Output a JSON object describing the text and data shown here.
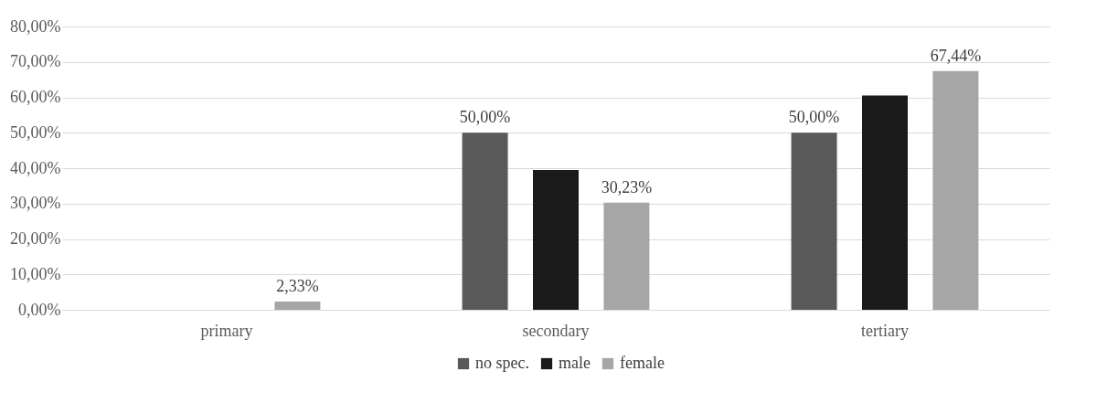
{
  "chart_data": {
    "type": "bar",
    "categories": [
      "primary",
      "secondary",
      "tertiary"
    ],
    "series": [
      {
        "name": "no spec.",
        "color": "#595959",
        "values": [
          0,
          50,
          50
        ],
        "value_labels": [
          null,
          "50,00%",
          "50,00%"
        ]
      },
      {
        "name": "male",
        "color": "#1a1a1a",
        "values": [
          0,
          39.5,
          60.5
        ],
        "value_labels": [
          null,
          null,
          null
        ]
      },
      {
        "name": "female",
        "color": "#a6a6a6",
        "values": [
          2.33,
          30.23,
          67.44
        ],
        "value_labels": [
          "2,33%",
          "30,23%",
          "67,44%"
        ]
      }
    ],
    "ylim": [
      0,
      80
    ],
    "yticks": [
      {
        "value": 0,
        "label": "0,00%"
      },
      {
        "value": 10,
        "label": "10,00%"
      },
      {
        "value": 20,
        "label": "20,00%"
      },
      {
        "value": 30,
        "label": "30,00%"
      },
      {
        "value": 40,
        "label": "40,00%"
      },
      {
        "value": 50,
        "label": "50,00%"
      },
      {
        "value": 60,
        "label": "60,00%"
      },
      {
        "value": 70,
        "label": "70,00%"
      },
      {
        "value": 80,
        "label": "80,00%"
      }
    ],
    "grid": "y",
    "legend": "bottom"
  }
}
